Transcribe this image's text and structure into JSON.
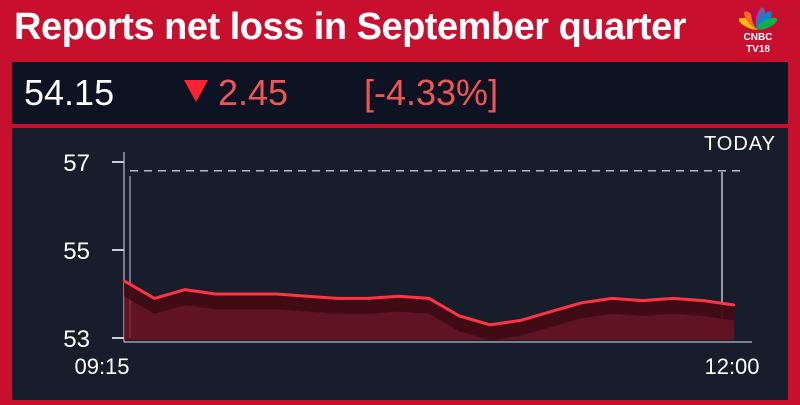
{
  "headline": {
    "text": "Reports net loss in September quarter"
  },
  "logo": {
    "line1": "CNBC",
    "line2": "TV18"
  },
  "ticker": {
    "price": "54.15",
    "change": "2.45",
    "change_pct": "[-4.33%]",
    "direction": "down",
    "change_color": "#f25555"
  },
  "chart_data": {
    "type": "area",
    "title": "",
    "period_label": "TODAY",
    "xlabel": "",
    "ylabel": "",
    "x_ticks": [
      "09:15",
      "12:00"
    ],
    "y_ticks": [
      57,
      55,
      53
    ],
    "ylim": [
      53,
      57
    ],
    "reference_line": 56.8,
    "x": [
      "09:15",
      "09:20",
      "09:25",
      "09:30",
      "09:40",
      "09:50",
      "10:00",
      "10:10",
      "10:20",
      "10:30",
      "10:40",
      "10:50",
      "10:55",
      "11:00",
      "11:05",
      "11:10",
      "11:20",
      "11:30",
      "11:40",
      "11:50",
      "12:00"
    ],
    "values": [
      54.3,
      53.9,
      54.1,
      54.0,
      54.0,
      54.0,
      53.95,
      53.9,
      53.9,
      53.95,
      53.9,
      53.5,
      53.3,
      53.4,
      53.6,
      53.8,
      53.9,
      53.85,
      53.9,
      53.85,
      53.75
    ],
    "line_color": "#ff3344",
    "fill_color": "#7a1020",
    "grid": true
  }
}
